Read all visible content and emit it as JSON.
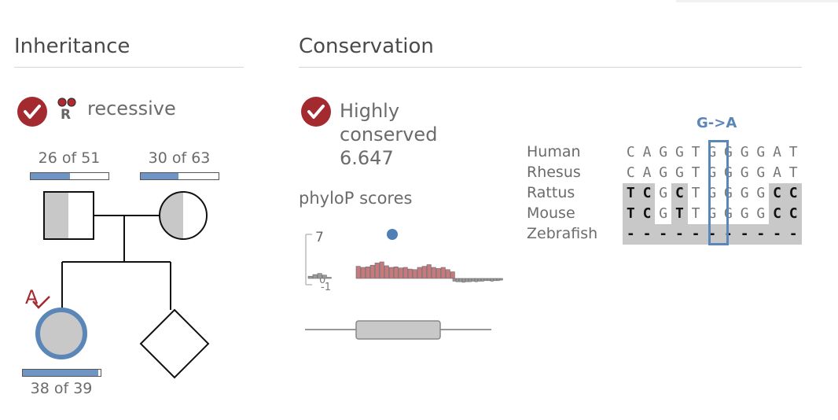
{
  "inheritance": {
    "title": "Inheritance",
    "mode_icon_letter": "R",
    "mode_label": "recessive",
    "parent_father": {
      "count_label": "26 of 51",
      "fraction": 0.51
    },
    "parent_mother": {
      "count_label": "30 of 63",
      "fraction": 0.48
    },
    "proband": {
      "count_label": "38 of 39",
      "fraction": 0.97,
      "marker_letter": "A"
    }
  },
  "conservation": {
    "title": "Conservation",
    "status_line1": "Highly",
    "status_line2": "conserved",
    "score": "6.647",
    "phylop_title": "phyloP scores",
    "axis_max": "7",
    "axis_mid": "0",
    "axis_min": "-1",
    "variant_label": "G->A",
    "alignment": [
      {
        "species": "Human",
        "bases": [
          "C",
          "A",
          "G",
          "G",
          "T",
          "G",
          "G",
          "G",
          "G",
          "A",
          "T"
        ],
        "gray": [],
        "bold": []
      },
      {
        "species": "Rhesus",
        "bases": [
          "C",
          "A",
          "G",
          "G",
          "T",
          "G",
          "G",
          "G",
          "G",
          "A",
          "T"
        ],
        "gray": [],
        "bold": []
      },
      {
        "species": "Rattus",
        "bases": [
          "T",
          "C",
          "G",
          "C",
          "T",
          "G",
          "G",
          "G",
          "G",
          "C",
          "C"
        ],
        "gray": [
          0,
          1,
          3,
          9,
          10
        ],
        "bold": [
          0,
          1,
          3,
          9,
          10
        ]
      },
      {
        "species": "Mouse",
        "bases": [
          "T",
          "C",
          "G",
          "T",
          "T",
          "G",
          "G",
          "G",
          "G",
          "C",
          "C"
        ],
        "gray": [
          0,
          1,
          3,
          9,
          10
        ],
        "bold": [
          0,
          1,
          3,
          9,
          10
        ]
      },
      {
        "species": "Zebrafish",
        "bases": [
          "-",
          "-",
          "-",
          "-",
          "-",
          "-",
          "-",
          "-",
          "-",
          "-",
          "-"
        ],
        "gray": [
          0,
          1,
          2,
          3,
          4,
          5,
          6,
          7,
          8,
          9,
          10
        ],
        "bold": [
          0,
          1,
          2,
          3,
          4,
          5,
          6,
          7,
          8,
          9,
          10
        ]
      }
    ]
  },
  "chart_data": {
    "type": "bar",
    "title": "phyloP scores",
    "ylim": [
      -1,
      7
    ],
    "variant_score": 6.647,
    "left_values": [
      0.4,
      0.7,
      0.9,
      0.6,
      0.2
    ],
    "center_values": [
      2.2,
      2.0,
      2.1,
      2.4,
      2.8,
      3.0,
      2.3,
      2.0,
      2.1,
      1.9,
      2.0,
      1.7,
      1.6,
      2.0,
      2.2,
      2.5,
      2.0,
      1.8,
      2.0,
      1.6,
      1.2
    ],
    "right_values": [
      -0.5,
      -0.6,
      -0.6,
      -0.7,
      -0.6,
      -0.6,
      -0.5,
      -0.6,
      -0.5,
      -0.5,
      -0.4,
      -0.4,
      -0.5,
      -0.4,
      -0.4,
      -0.3
    ],
    "colors": {
      "center": "#c77a7e",
      "side": "#9a9a9a",
      "variant_dot": "#4f7fb5"
    }
  },
  "colors": {
    "accent_red": "#a32a2f",
    "accent_blue": "#5a86b8"
  }
}
